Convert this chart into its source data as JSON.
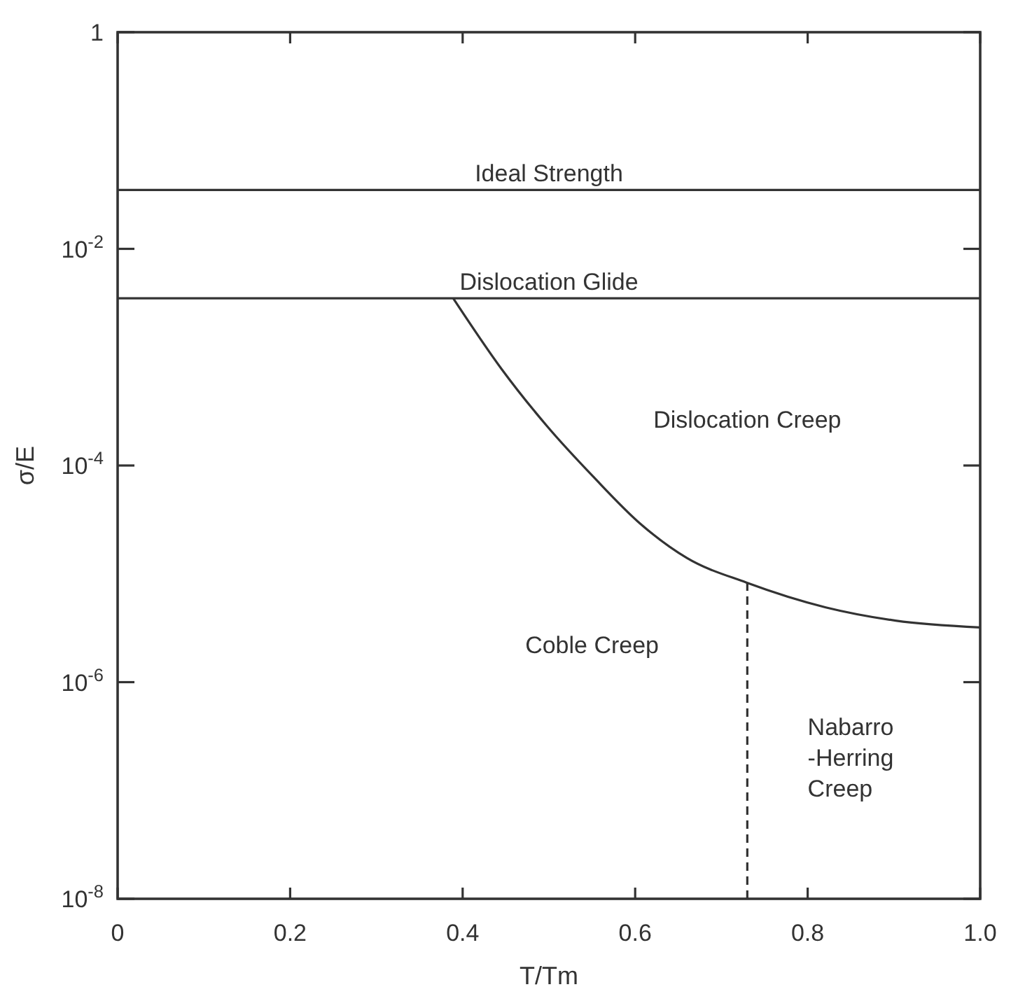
{
  "chart_data": {
    "type": "line",
    "xlabel": "T/Tm",
    "ylabel": "σ/E",
    "log": "y",
    "xlim": [
      0,
      1
    ],
    "xticks": [
      0,
      0.2,
      0.4,
      0.6,
      0.8,
      {
        "value": 1,
        "label": "1.0"
      }
    ],
    "ylim": [
      1e-08,
      1
    ],
    "yticks": [
      {
        "value": 1e-08,
        "label": "10$^{-8}$"
      },
      {
        "value": 1e-06,
        "label": "10$^{-6}$"
      },
      {
        "value": 0.0001,
        "label": "10$^{-4}$"
      },
      {
        "value": 0.01,
        "label": "10$^{-2}$"
      },
      1
    ],
    "grid": false,
    "series": [
      {
        "color": "#333333",
        "line_style": "solid",
        "x": [
          0.389,
          0.445,
          0.498,
          0.552,
          0.606,
          0.66,
          0.729,
          0.821,
          0.902,
          1.0
        ],
        "values": [
          0.0035,
          0.00078,
          0.00023,
          7.8e-05,
          2.9e-05,
          1.4e-05,
          8.3e-06,
          4.9e-06,
          3.7e-06,
          3.2e-06
        ]
      },
      {
        "color": "#333333",
        "line_style": "dashed",
        "x": [
          0.73,
          0.73
        ],
        "values": [
          1e-08,
          8.3e-06
        ]
      }
    ],
    "ref_lines": [
      {
        "axis": "y",
        "value": 0.035,
        "label": "Ideal Strength",
        "color": "#333333"
      },
      {
        "axis": "y",
        "value": 0.0035,
        "label": "Dislocation Glide",
        "color": "#333333"
      }
    ],
    "annotations": [
      "Dislocation Creep",
      "Coble Creep",
      "Nabarro\n-Herring\nCreep"
    ]
  }
}
